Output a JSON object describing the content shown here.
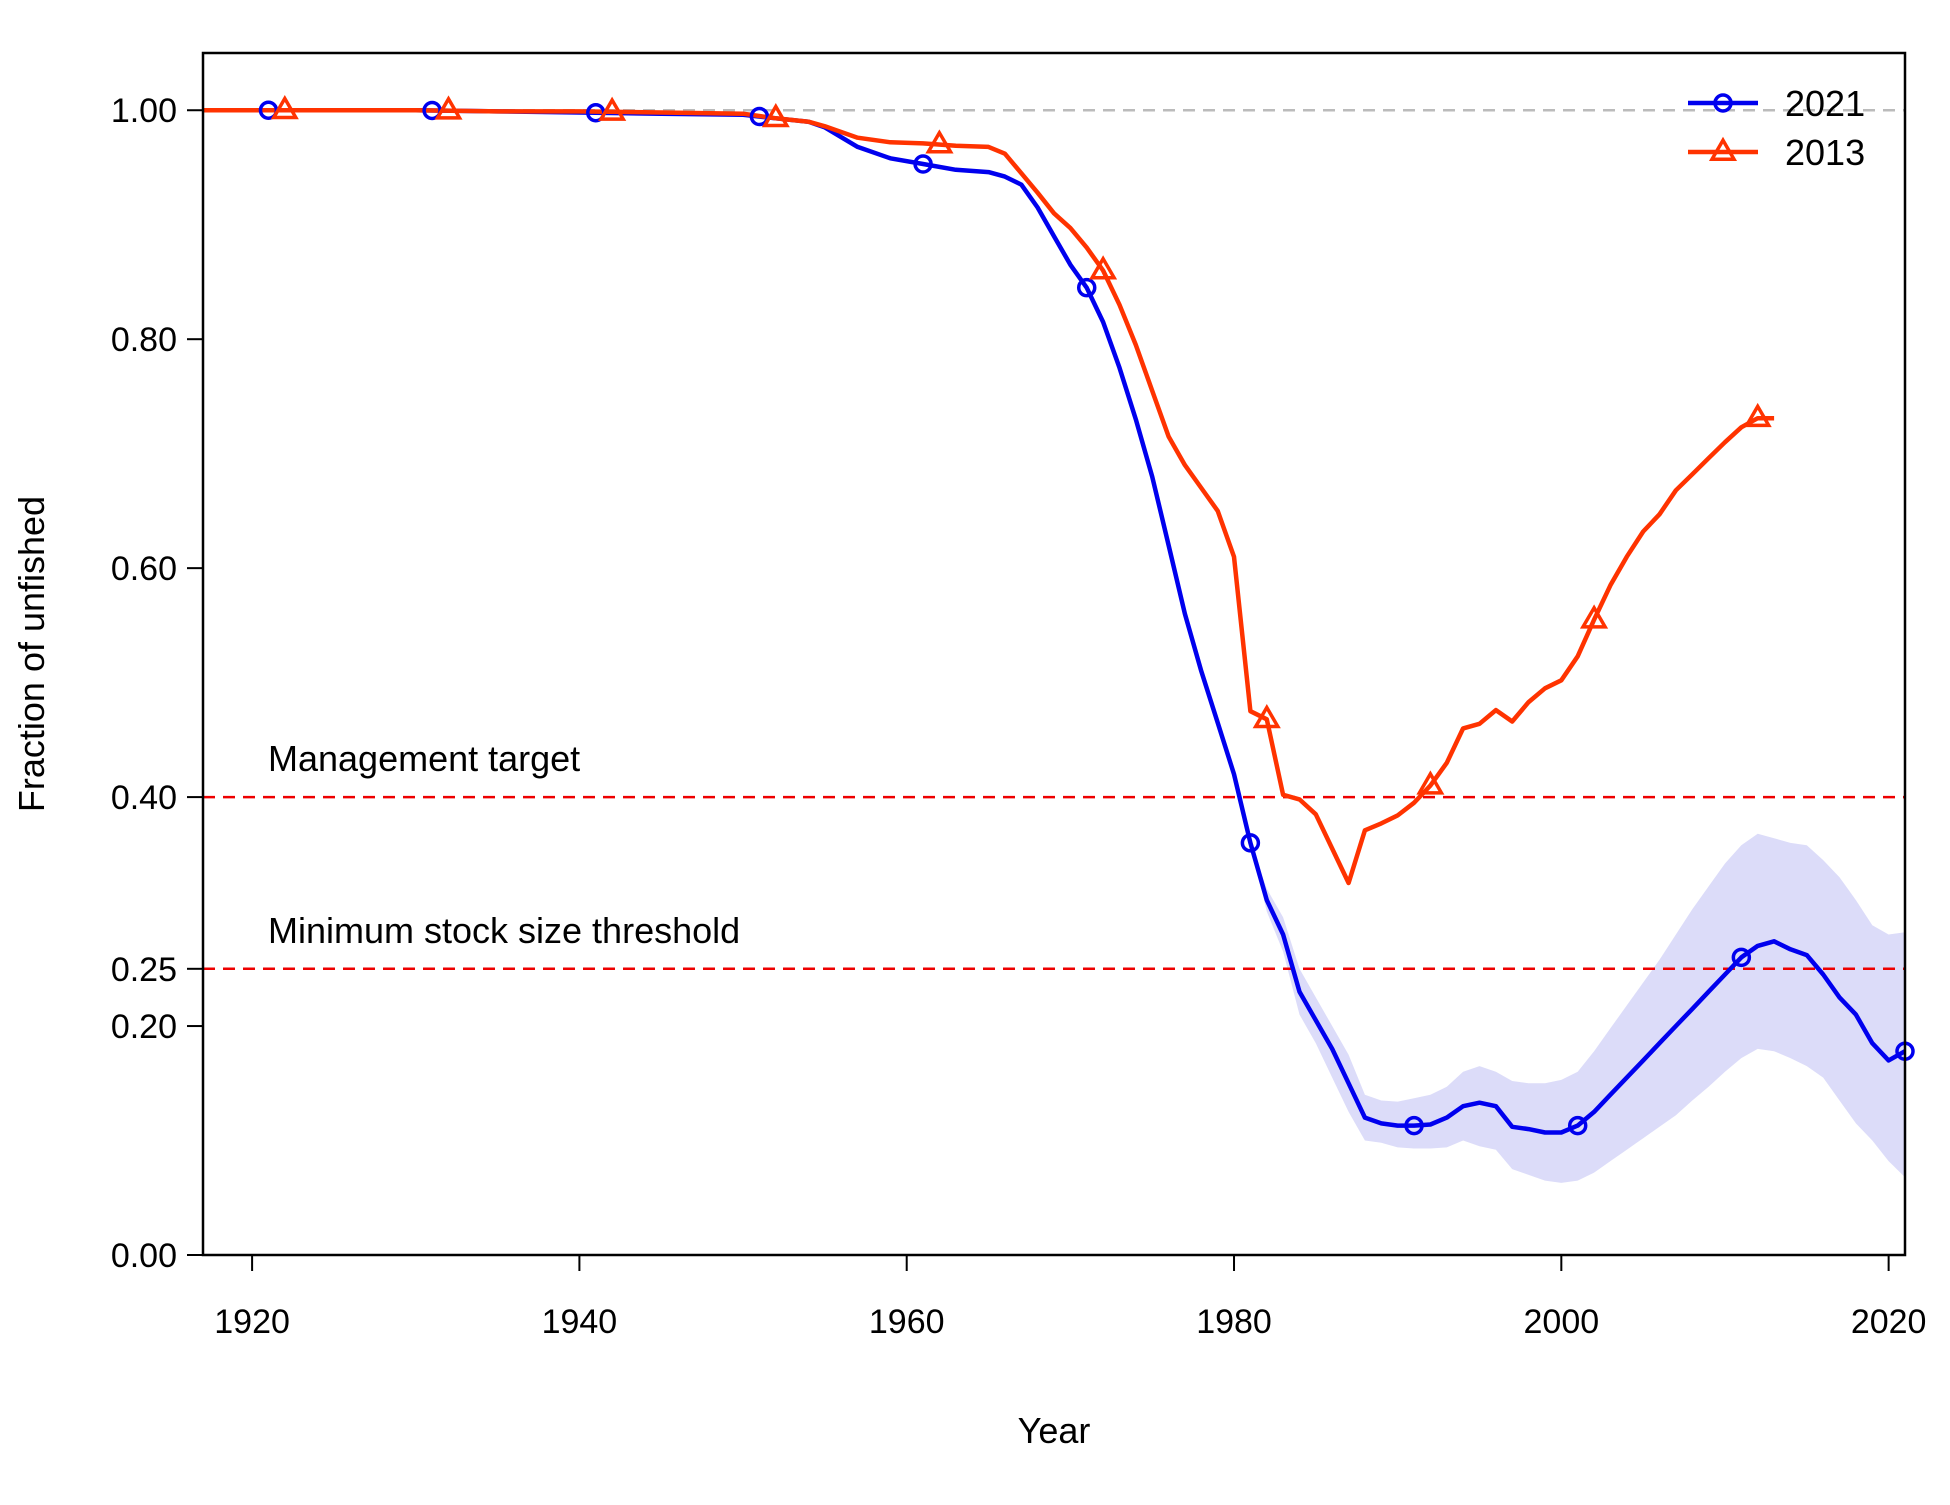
{
  "chart_data": {
    "type": "line",
    "title": "",
    "xlabel": "Year",
    "ylabel": "Fraction of unfished",
    "xlim": [
      1917,
      2021
    ],
    "ylim": [
      0,
      1.05
    ],
    "x_ticks": [
      1920,
      1940,
      1960,
      1980,
      2000,
      2020
    ],
    "x_tick_labels": [
      "1920",
      "1940",
      "1960",
      "1980",
      "2000",
      "2020"
    ],
    "y_ticks": [
      0.0,
      0.2,
      0.25,
      0.4,
      0.6,
      0.8,
      1.0
    ],
    "y_tick_labels": [
      "0.00",
      "0.20",
      "0.25",
      "0.40",
      "0.60",
      "0.80",
      "1.00"
    ],
    "grid": false,
    "legend_position": "top-right",
    "reference_lines": [
      {
        "y": 1.0,
        "color": "#bbbbbb",
        "style": "dashed",
        "label": ""
      },
      {
        "y": 0.4,
        "color": "#ee0000",
        "style": "dashed",
        "label": "Management target"
      },
      {
        "y": 0.25,
        "color": "#ee0000",
        "style": "dashed",
        "label": "Minimum stock size threshold"
      }
    ],
    "series": [
      {
        "name": "2021",
        "color": "#0000ee",
        "marker": "circle",
        "marker_years": [
          1921,
          1931,
          1941,
          1951,
          1961,
          1971,
          1981,
          1991,
          2001,
          2011,
          2021
        ],
        "x": [
          1917,
          1920,
          1925,
          1930,
          1935,
          1940,
          1945,
          1950,
          1952,
          1954,
          1955,
          1957,
          1959,
          1961,
          1963,
          1965,
          1966,
          1967,
          1968,
          1969,
          1970,
          1971,
          1972,
          1973,
          1974,
          1975,
          1976,
          1977,
          1978,
          1979,
          1980,
          1981,
          1982,
          1983,
          1984,
          1985,
          1986,
          1987,
          1988,
          1989,
          1990,
          1991,
          1992,
          1993,
          1994,
          1995,
          1996,
          1997,
          1998,
          1999,
          2000,
          2001,
          2002,
          2003,
          2004,
          2005,
          2006,
          2007,
          2008,
          2009,
          2010,
          2011,
          2012,
          2013,
          2014,
          2015,
          2016,
          2017,
          2018,
          2019,
          2020,
          2021
        ],
        "values": [
          1.0,
          1.0,
          1.0,
          1.0,
          0.999,
          0.998,
          0.997,
          0.996,
          0.993,
          0.99,
          0.985,
          0.968,
          0.958,
          0.953,
          0.948,
          0.946,
          0.942,
          0.935,
          0.915,
          0.89,
          0.865,
          0.845,
          0.815,
          0.775,
          0.73,
          0.68,
          0.62,
          0.56,
          0.51,
          0.465,
          0.42,
          0.36,
          0.31,
          0.28,
          0.23,
          0.205,
          0.18,
          0.15,
          0.12,
          0.115,
          0.113,
          0.113,
          0.114,
          0.12,
          0.13,
          0.133,
          0.13,
          0.112,
          0.11,
          0.107,
          0.107,
          0.113,
          0.125,
          0.14,
          0.155,
          0.17,
          0.185,
          0.2,
          0.215,
          0.23,
          0.245,
          0.26,
          0.27,
          0.274,
          0.267,
          0.262,
          0.245,
          0.225,
          0.21,
          0.185,
          0.17,
          0.178
        ],
        "ci_lower": [
          1.0,
          1.0,
          1.0,
          1.0,
          0.999,
          0.998,
          0.997,
          0.996,
          0.993,
          0.99,
          0.985,
          0.968,
          0.958,
          0.953,
          0.948,
          0.946,
          0.942,
          0.935,
          0.915,
          0.89,
          0.865,
          0.845,
          0.815,
          0.775,
          0.73,
          0.68,
          0.62,
          0.56,
          0.51,
          0.465,
          0.42,
          0.36,
          0.3,
          0.265,
          0.21,
          0.185,
          0.155,
          0.125,
          0.1,
          0.098,
          0.094,
          0.093,
          0.093,
          0.094,
          0.1,
          0.095,
          0.092,
          0.075,
          0.07,
          0.065,
          0.063,
          0.065,
          0.072,
          0.082,
          0.092,
          0.102,
          0.112,
          0.122,
          0.135,
          0.147,
          0.16,
          0.172,
          0.18,
          0.178,
          0.172,
          0.165,
          0.155,
          0.135,
          0.115,
          0.1,
          0.082,
          0.068
        ],
        "ci_upper": [
          1.0,
          1.0,
          1.0,
          1.0,
          0.999,
          0.998,
          0.997,
          0.996,
          0.993,
          0.99,
          0.985,
          0.968,
          0.958,
          0.953,
          0.948,
          0.946,
          0.942,
          0.935,
          0.915,
          0.89,
          0.865,
          0.845,
          0.815,
          0.775,
          0.73,
          0.68,
          0.62,
          0.56,
          0.51,
          0.465,
          0.42,
          0.36,
          0.32,
          0.295,
          0.25,
          0.225,
          0.2,
          0.175,
          0.14,
          0.135,
          0.134,
          0.137,
          0.14,
          0.147,
          0.16,
          0.165,
          0.16,
          0.152,
          0.15,
          0.15,
          0.153,
          0.16,
          0.178,
          0.198,
          0.218,
          0.238,
          0.258,
          0.28,
          0.302,
          0.322,
          0.342,
          0.358,
          0.368,
          0.364,
          0.36,
          0.358,
          0.345,
          0.33,
          0.31,
          0.288,
          0.28,
          0.282
        ]
      },
      {
        "name": "2013",
        "color": "#ff3300",
        "marker": "triangle",
        "marker_years": [
          1922,
          1932,
          1942,
          1952,
          1962,
          1972,
          1982,
          1992,
          2002,
          2012
        ],
        "x": [
          1917,
          1920,
          1925,
          1930,
          1935,
          1940,
          1945,
          1950,
          1952,
          1954,
          1955,
          1957,
          1959,
          1961,
          1963,
          1965,
          1966,
          1967,
          1968,
          1969,
          1970,
          1971,
          1972,
          1973,
          1974,
          1975,
          1976,
          1977,
          1978,
          1979,
          1980,
          1981,
          1982,
          1983,
          1984,
          1985,
          1986,
          1987,
          1988,
          1989,
          1990,
          1991,
          1992,
          1993,
          1994,
          1995,
          1996,
          1997,
          1998,
          1999,
          2000,
          2001,
          2002,
          2003,
          2004,
          2005,
          2006,
          2007,
          2008,
          2009,
          2010,
          2011,
          2012,
          2013
        ],
        "values": [
          1.0,
          1.0,
          1.0,
          1.0,
          0.999,
          0.999,
          0.998,
          0.997,
          0.993,
          0.99,
          0.986,
          0.976,
          0.972,
          0.971,
          0.969,
          0.968,
          0.962,
          0.945,
          0.928,
          0.91,
          0.897,
          0.88,
          0.86,
          0.83,
          0.795,
          0.755,
          0.715,
          0.69,
          0.67,
          0.65,
          0.61,
          0.475,
          0.468,
          0.402,
          0.398,
          0.385,
          0.355,
          0.325,
          0.371,
          0.377,
          0.384,
          0.395,
          0.41,
          0.43,
          0.46,
          0.464,
          0.476,
          0.466,
          0.483,
          0.495,
          0.502,
          0.523,
          0.555,
          0.585,
          0.61,
          0.632,
          0.647,
          0.668,
          0.682,
          0.696,
          0.71,
          0.723,
          0.731,
          0.731
        ]
      }
    ]
  }
}
